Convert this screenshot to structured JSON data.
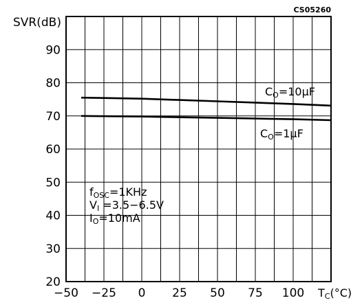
{
  "figure_code": "CS05260",
  "chart_data": {
    "type": "line",
    "title": "",
    "ylabel": "SVR(dB)",
    "xlabel": {
      "main": "T",
      "sub": "C",
      "unit": "(°C)"
    },
    "xlim": [
      -50,
      125
    ],
    "ylim": [
      20,
      100
    ],
    "grid": true,
    "x_ticks": [
      "−50",
      "−25",
      "0",
      "25",
      "50",
      "75",
      "100"
    ],
    "y_ticks": [
      "20",
      "30",
      "40",
      "50",
      "60",
      "70",
      "80",
      "90"
    ],
    "series": [
      {
        "name": {
          "main": "C",
          "sub": "O",
          "value": "=10μF"
        },
        "x": [
          -40,
          -25,
          0,
          25,
          50,
          75,
          100,
          125
        ],
        "y": [
          75.5,
          75.4,
          75.2,
          74.8,
          74.4,
          74.0,
          73.6,
          73.1
        ]
      },
      {
        "name": {
          "main": "C",
          "sub": "O",
          "value": "=1μF"
        },
        "x": [
          -40,
          -25,
          0,
          25,
          50,
          75,
          100,
          125
        ],
        "y": [
          70.0,
          69.9,
          69.8,
          69.6,
          69.4,
          69.2,
          69.0,
          68.7
        ]
      }
    ],
    "annotations": [
      {
        "main": "f",
        "sub": "OSC",
        "value": "=1KHz"
      },
      {
        "main": "V",
        "sub": "I",
        "value": " =3.5−6.5V"
      },
      {
        "main": "I",
        "sub": "O",
        "value": "=10mA"
      }
    ]
  }
}
